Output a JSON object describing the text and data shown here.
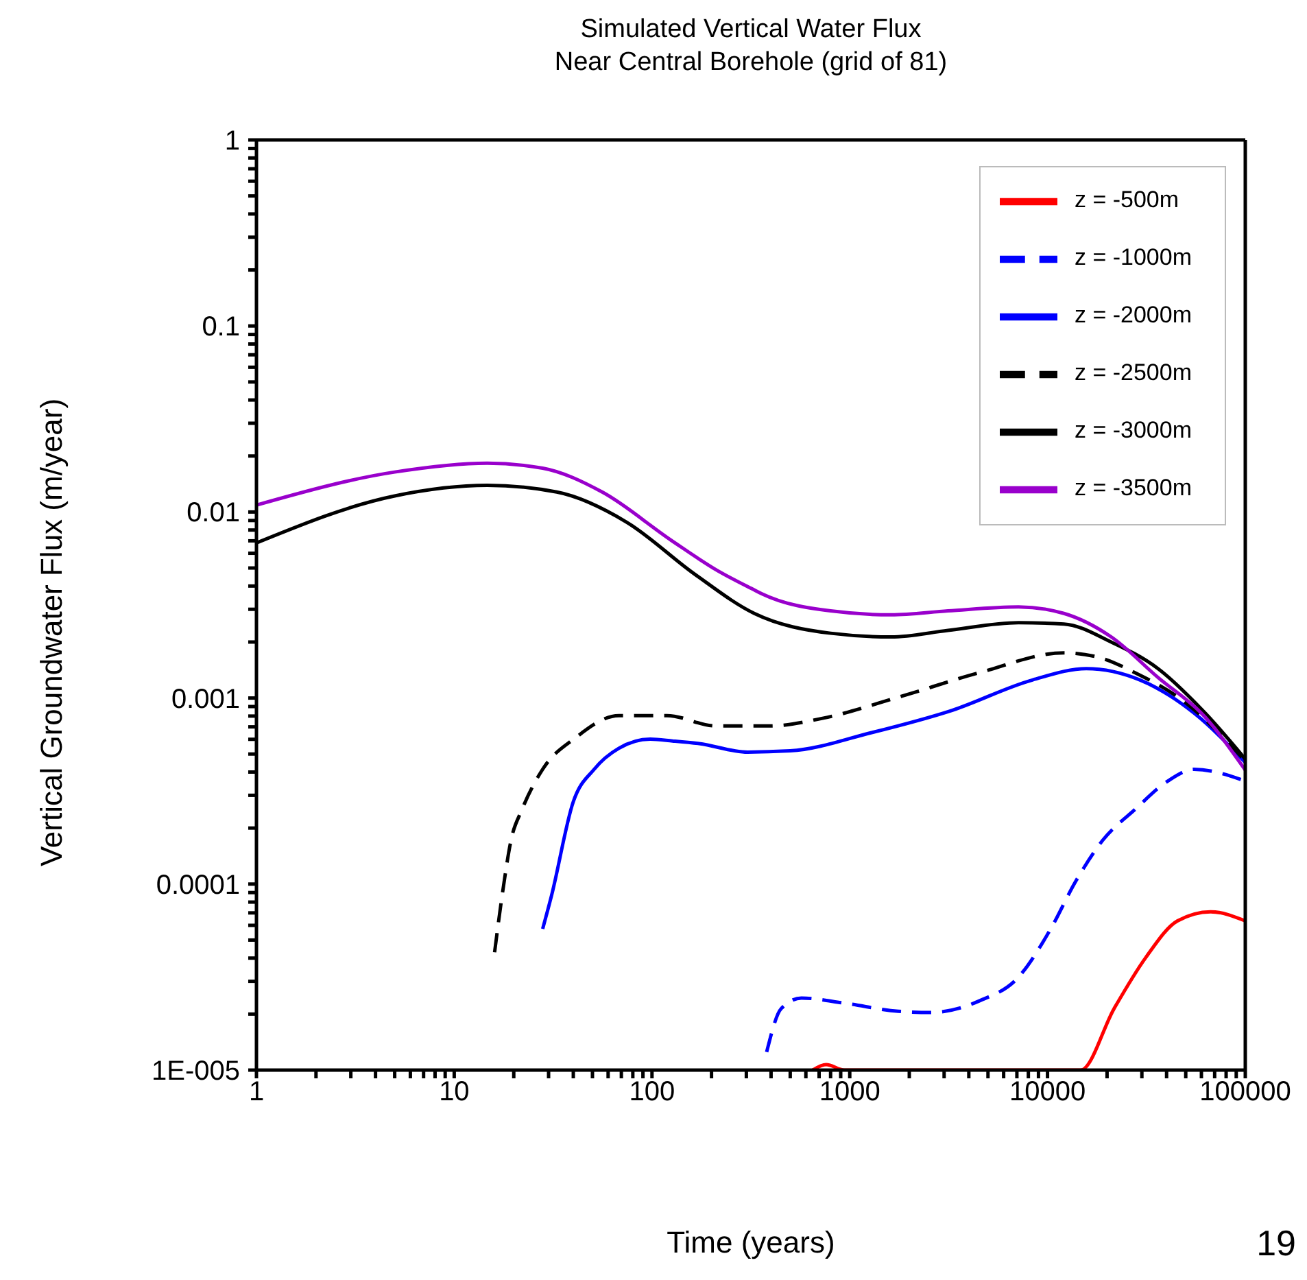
{
  "chart_data": {
    "type": "line",
    "title": "Simulated Vertical Water Flux",
    "subtitle": "Near Central Borehole (grid of 81)",
    "xlabel": "Time (years)",
    "ylabel": "Vertical Groundwater Flux (m/year)",
    "annotations": [
      "19"
    ],
    "log": "xy",
    "legend": "top right",
    "grid": false,
    "marker": "none",
    "xlim": [
      1,
      100000
    ],
    "ylim": [
      1e-05,
      1
    ],
    "xticks": [
      1,
      {
        "value": 2,
        "label": null
      },
      {
        "value": 3,
        "label": null
      },
      {
        "value": 4,
        "label": null
      },
      {
        "value": 5,
        "label": null
      },
      {
        "value": 6,
        "label": null
      },
      {
        "value": 7,
        "label": null
      },
      {
        "value": 8,
        "label": null
      },
      {
        "value": 9,
        "label": null
      },
      10,
      {
        "value": 20,
        "label": null
      },
      {
        "value": 30,
        "label": null
      },
      {
        "value": 40,
        "label": null
      },
      {
        "value": 50,
        "label": null
      },
      {
        "value": 60,
        "label": null
      },
      {
        "value": 70,
        "label": null
      },
      {
        "value": 80,
        "label": null
      },
      {
        "value": 90,
        "label": null
      },
      100,
      {
        "value": 200,
        "label": null
      },
      {
        "value": 300,
        "label": null
      },
      {
        "value": 400,
        "label": null
      },
      {
        "value": 500,
        "label": null
      },
      {
        "value": 600,
        "label": null
      },
      {
        "value": 700,
        "label": null
      },
      {
        "value": 800,
        "label": null
      },
      {
        "value": 900,
        "label": null
      },
      1000,
      {
        "value": 2000,
        "label": null
      },
      {
        "value": 3000,
        "label": null
      },
      {
        "value": 4000,
        "label": null
      },
      {
        "value": 5000,
        "label": null
      },
      {
        "value": 6000,
        "label": null
      },
      {
        "value": 7000,
        "label": null
      },
      {
        "value": 8000,
        "label": null
      },
      {
        "value": 9000,
        "label": null
      },
      10000,
      {
        "value": 20000,
        "label": null
      },
      {
        "value": 30000,
        "label": null
      },
      {
        "value": 40000,
        "label": null
      },
      {
        "value": 50000,
        "label": null
      },
      {
        "value": 60000,
        "label": null
      },
      {
        "value": 70000,
        "label": null
      },
      {
        "value": 80000,
        "label": null
      },
      {
        "value": 90000,
        "label": null
      },
      100000
    ],
    "yticks": [
      {
        "value": 1e-05,
        "label": "1E-005"
      },
      {
        "value": 2e-05,
        "label": null
      },
      {
        "value": 3e-05,
        "label": null
      },
      {
        "value": 4e-05,
        "label": null
      },
      {
        "value": 5e-05,
        "label": null
      },
      {
        "value": 6e-05,
        "label": null
      },
      {
        "value": 7e-05,
        "label": null
      },
      {
        "value": 8e-05,
        "label": null
      },
      {
        "value": 9e-05,
        "label": null
      },
      0.0001,
      {
        "value": 0.0002,
        "label": null
      },
      {
        "value": 0.0003,
        "label": null
      },
      {
        "value": 0.0004,
        "label": null
      },
      {
        "value": 0.0005,
        "label": null
      },
      {
        "value": 0.0006,
        "label": null
      },
      {
        "value": 0.0007,
        "label": null
      },
      {
        "value": 0.0008,
        "label": null
      },
      {
        "value": 0.0009,
        "label": null
      },
      0.001,
      {
        "value": 0.002,
        "label": null
      },
      {
        "value": 0.003,
        "label": null
      },
      {
        "value": 0.004,
        "label": null
      },
      {
        "value": 0.005,
        "label": null
      },
      {
        "value": 0.006,
        "label": null
      },
      {
        "value": 0.007,
        "label": null
      },
      {
        "value": 0.008,
        "label": null
      },
      {
        "value": 0.009,
        "label": null
      },
      0.01,
      {
        "value": 0.02,
        "label": null
      },
      {
        "value": 0.03,
        "label": null
      },
      {
        "value": 0.04,
        "label": null
      },
      {
        "value": 0.05,
        "label": null
      },
      {
        "value": 0.06,
        "label": null
      },
      {
        "value": 0.07,
        "label": null
      },
      {
        "value": 0.08,
        "label": null
      },
      {
        "value": 0.09,
        "label": null
      },
      0.1,
      {
        "value": 0.2,
        "label": null
      },
      {
        "value": 0.3,
        "label": null
      },
      {
        "value": 0.4,
        "label": null
      },
      {
        "value": 0.5,
        "label": null
      },
      {
        "value": 0.6,
        "label": null
      },
      {
        "value": 0.7,
        "label": null
      },
      {
        "value": 0.8,
        "label": null
      },
      {
        "value": 0.9,
        "label": null
      },
      1
    ],
    "series": [
      {
        "name": "z = -500m",
        "color": "#ff0000",
        "line_style": "solid",
        "x": [
          650,
          760,
          940,
          14700,
          21700,
          31400,
          45400,
          66800,
          100000
        ],
        "values": [
          1e-05,
          1.07e-05,
          1e-05,
          1e-05,
          2.14e-05,
          4.03e-05,
          6.34e-05,
          7.1e-05,
          6.34e-05
        ]
      },
      {
        "name": "z = -1000m",
        "color": "#0000ff",
        "line_style": "dashed",
        "x": [
          380,
          450,
          570,
          940,
          1760,
          2550,
          4540,
          7130,
          10200,
          14000,
          19100,
          27600,
          40600,
          55100,
          100000
        ],
        "values": [
          1.25e-05,
          2.14e-05,
          2.44e-05,
          2.29e-05,
          2.07e-05,
          2.04e-05,
          2.36e-05,
          3.16e-05,
          5.56e-05,
          0.000105,
          0.000173,
          0.000251,
          0.000358,
          0.000414,
          0.000358
        ]
      },
      {
        "name": "z = -2000m",
        "color": "#0000ff",
        "line_style": "solid",
        "x": [
          28,
          31,
          40,
          51,
          68,
          98,
          127,
          173,
          304,
          500,
          1290,
          3290,
          8380,
          15700,
          29400,
          55100,
          100000
        ],
        "values": [
          5.74e-05,
          8.61e-05,
          0.000277,
          0.000414,
          0.000537,
          0.000601,
          0.000588,
          0.000569,
          0.000512,
          0.00052,
          0.000652,
          0.000859,
          0.00125,
          0.00144,
          0.00125,
          0.00083,
          0.00045
        ]
      },
      {
        "name": "z = -2500m",
        "color": "#000000",
        "line_style": "dashed",
        "x": [
          16,
          17.6,
          19.4,
          22,
          28,
          41,
          68,
          119,
          210,
          393,
          736,
          1760,
          4540,
          12100,
          18700,
          27600,
          47600,
          100000
        ],
        "values": [
          4.3e-05,
          9.18e-05,
          0.000173,
          0.000251,
          0.000414,
          0.000611,
          0.000805,
          0.000805,
          0.000708,
          0.000708,
          0.00078,
          0.00101,
          0.00137,
          0.00175,
          0.00164,
          0.00137,
          0.00098,
          0.00046
        ]
      },
      {
        "name": "z = -3000m",
        "color": "#000000",
        "line_style": "solid",
        "x": [
          1,
          5,
          14.7,
          33,
          74,
          165,
          329,
          800,
          1620,
          3140,
          7130,
          12100,
          21000,
          36200,
          62700,
          100000
        ],
        "values": [
          0.00682,
          0.0122,
          0.0139,
          0.0128,
          0.00885,
          0.00462,
          0.00285,
          0.00223,
          0.00213,
          0.00231,
          0.00254,
          0.0025,
          0.002,
          0.00144,
          0.00083,
          0.00047
        ]
      },
      {
        "name": "z = -3500m",
        "color": "#9900cc",
        "line_style": "solid",
        "x": [
          1,
          5,
          14.7,
          28,
          56,
          125,
          213,
          329,
          360,
          800,
          1620,
          3140,
          7130,
          12100,
          21000,
          36200,
          62700,
          100000
        ],
        "values": [
          0.0109,
          0.0164,
          0.0183,
          0.0172,
          0.0128,
          0.00705,
          0.00486,
          0.00381,
          0.00363,
          0.00294,
          0.0028,
          0.00294,
          0.00309,
          0.00285,
          0.00213,
          0.00129,
          0.00079,
          0.00041
        ]
      }
    ]
  }
}
